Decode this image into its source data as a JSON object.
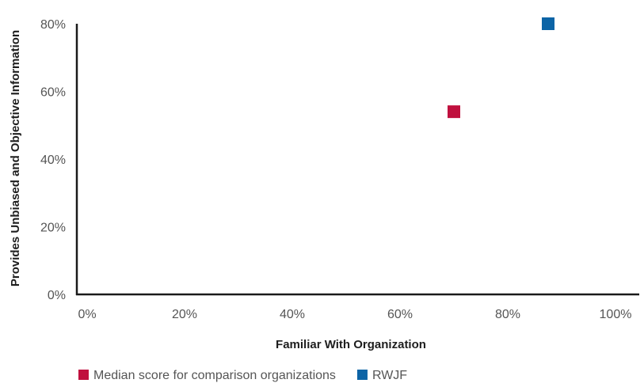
{
  "chart_data": {
    "type": "scatter",
    "title": "",
    "xlabel": "Familiar With Organization",
    "ylabel": "Provides Unbiased and Objective Information",
    "xlim": [
      0,
      100
    ],
    "ylim": [
      0,
      80
    ],
    "x_ticks": [
      "0%",
      "20%",
      "40%",
      "60%",
      "80%",
      "100%"
    ],
    "y_ticks": [
      "0%",
      "20%",
      "40%",
      "60%",
      "80%"
    ],
    "grid": false,
    "legend_position": "bottom-left",
    "series": [
      {
        "name": "Median score for comparison organizations",
        "color": "#c0103e",
        "marker": "square",
        "points": [
          {
            "x": 70,
            "y": 54
          }
        ]
      },
      {
        "name": "RWJF",
        "color": "#0c64a6",
        "marker": "square",
        "points": [
          {
            "x": 87.5,
            "y": 80
          }
        ]
      }
    ]
  }
}
